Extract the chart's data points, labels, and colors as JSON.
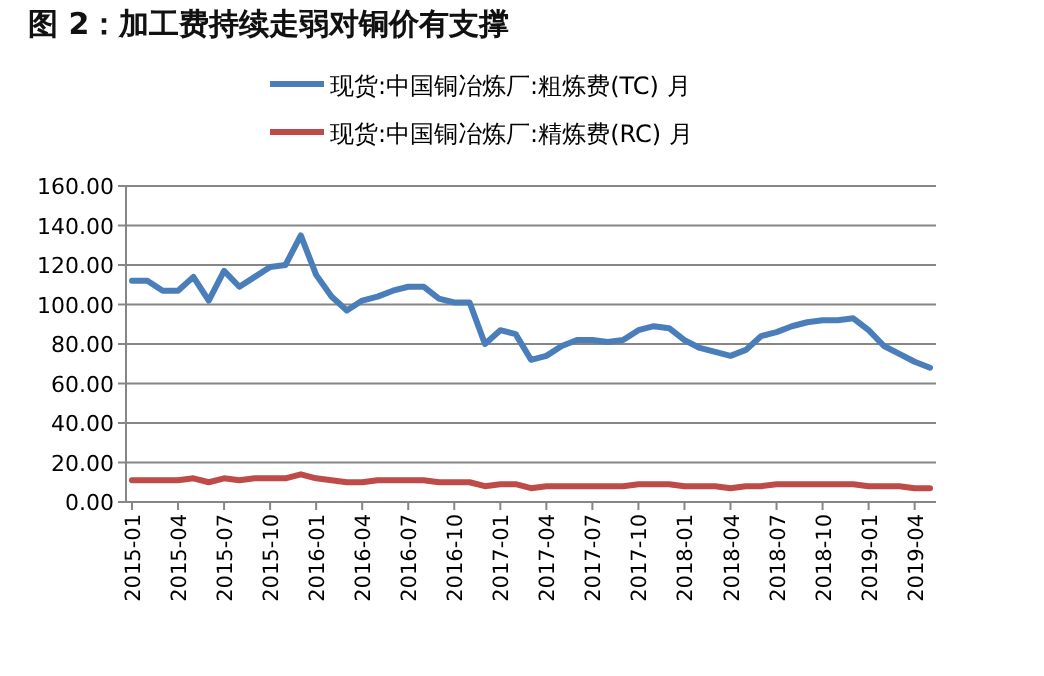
{
  "chart_data": {
    "type": "line",
    "title": "图 2：加工费持续走弱对铜价有支撑",
    "categories": [
      "2015-01",
      null,
      null,
      "2015-04",
      null,
      null,
      "2015-07",
      null,
      null,
      "2015-10",
      null,
      null,
      "2016-01",
      null,
      null,
      "2016-04",
      null,
      null,
      "2016-07",
      null,
      null,
      "2016-10",
      null,
      null,
      "2017-01",
      null,
      null,
      "2017-04",
      null,
      null,
      "2017-07",
      null,
      null,
      "2017-10",
      null,
      null,
      "2018-01",
      null,
      null,
      "2018-04",
      null,
      null,
      "2018-07",
      null,
      null,
      "2018-10",
      null,
      null,
      "2019-01",
      null,
      null,
      "2019-04",
      null
    ],
    "series": [
      {
        "name": "现货:中国铜冶炼厂:粗炼费(TC) 月",
        "color": "#4a7ebb",
        "values": [
          112,
          112,
          107,
          107,
          114,
          102,
          117,
          109,
          114,
          119,
          120,
          135,
          115,
          104,
          97,
          102,
          104,
          107,
          109,
          109,
          103,
          101,
          101,
          80,
          87,
          85,
          72,
          74,
          79,
          82,
          82,
          81,
          82,
          87,
          89,
          88,
          82,
          78,
          76,
          74,
          77,
          84,
          86,
          89,
          91,
          92,
          92,
          93,
          87,
          79,
          75,
          71,
          68
        ]
      },
      {
        "name": "现货:中国铜冶炼厂:精炼费(RC) 月",
        "color": "#be4b48",
        "values": [
          11,
          11,
          11,
          11,
          12,
          10,
          12,
          11,
          12,
          12,
          12,
          14,
          12,
          11,
          10,
          10,
          11,
          11,
          11,
          11,
          10,
          10,
          10,
          8,
          9,
          9,
          7,
          8,
          8,
          8,
          8,
          8,
          8,
          9,
          9,
          9,
          8,
          8,
          8,
          7,
          8,
          8,
          9,
          9,
          9,
          9,
          9,
          9,
          8,
          8,
          8,
          7,
          7
        ]
      }
    ],
    "ylim": [
      0,
      160
    ],
    "yticks": [
      {
        "value": 0,
        "label": "0.00"
      },
      {
        "value": 20,
        "label": "20.00"
      },
      {
        "value": 40,
        "label": "40.00"
      },
      {
        "value": 60,
        "label": "60.00"
      },
      {
        "value": 80,
        "label": "80.00"
      },
      {
        "value": 100,
        "label": "100.00"
      },
      {
        "value": 120,
        "label": "120.00"
      },
      {
        "value": 140,
        "label": "140.00"
      },
      {
        "value": 160,
        "label": "160.00"
      }
    ],
    "grid": "y",
    "legend": "top",
    "marker": "none",
    "line_style": "solid"
  }
}
